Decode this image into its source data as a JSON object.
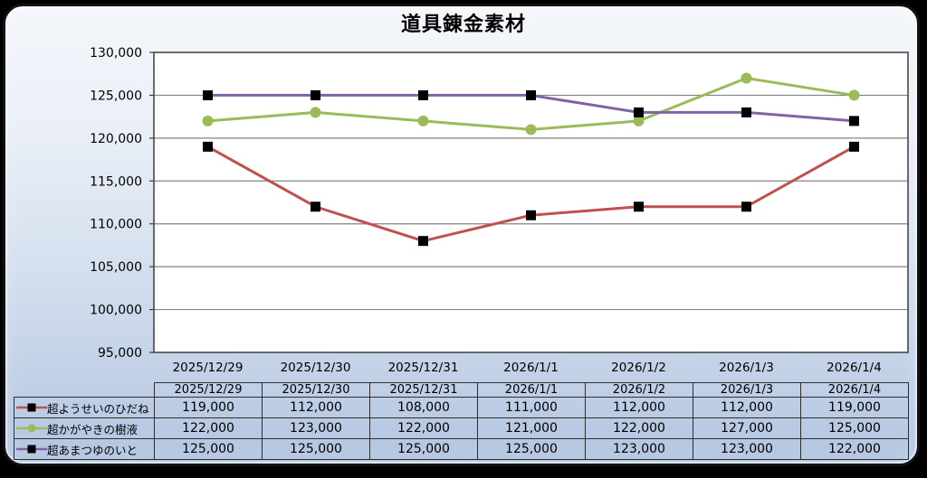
{
  "panel": {
    "title": "道具錬金素材"
  },
  "colors": {
    "panel_gradient_top": "#f4f7fb",
    "panel_gradient_bottom": "#b2c5e1",
    "panel_border": "#121212",
    "plot_background": "#ffffff",
    "gridline": "#858585",
    "plot_border": "#3d3d3d",
    "text": "#000000",
    "series_red": "#c0504d",
    "series_green": "#9bbb59",
    "series_purple": "#8064a2",
    "marker_black": "#000000"
  },
  "chart_data": {
    "type": "line",
    "title": "道具錬金素材",
    "xlabel": "",
    "ylabel": "",
    "categories": [
      "2025/12/29",
      "2025/12/30",
      "2025/12/31",
      "2026/1/1",
      "2026/1/2",
      "2026/1/3",
      "2026/1/4"
    ],
    "series": [
      {
        "name": "超ようせいのひだね",
        "color": "#c0504d",
        "marker": "square",
        "marker_color": "#000000",
        "values": [
          119000,
          112000,
          108000,
          111000,
          112000,
          112000,
          119000
        ]
      },
      {
        "name": "超かがやきの樹液",
        "color": "#9bbb59",
        "marker": "circle",
        "marker_color": "#9bbb59",
        "values": [
          122000,
          123000,
          122000,
          121000,
          122000,
          127000,
          125000
        ]
      },
      {
        "name": "超あまつゆのいと",
        "color": "#8064a2",
        "marker": "square",
        "marker_color": "#000000",
        "values": [
          125000,
          125000,
          125000,
          125000,
          123000,
          123000,
          122000
        ]
      }
    ],
    "ylim": [
      95000,
      130000
    ],
    "y_tick_step": 5000,
    "y_tick_labels": [
      "95,000",
      "100,000",
      "105,000",
      "110,000",
      "115,000",
      "120,000",
      "125,000",
      "130,000"
    ],
    "grid": true,
    "legend_position": "data-table-left",
    "data_table_shown": true
  }
}
